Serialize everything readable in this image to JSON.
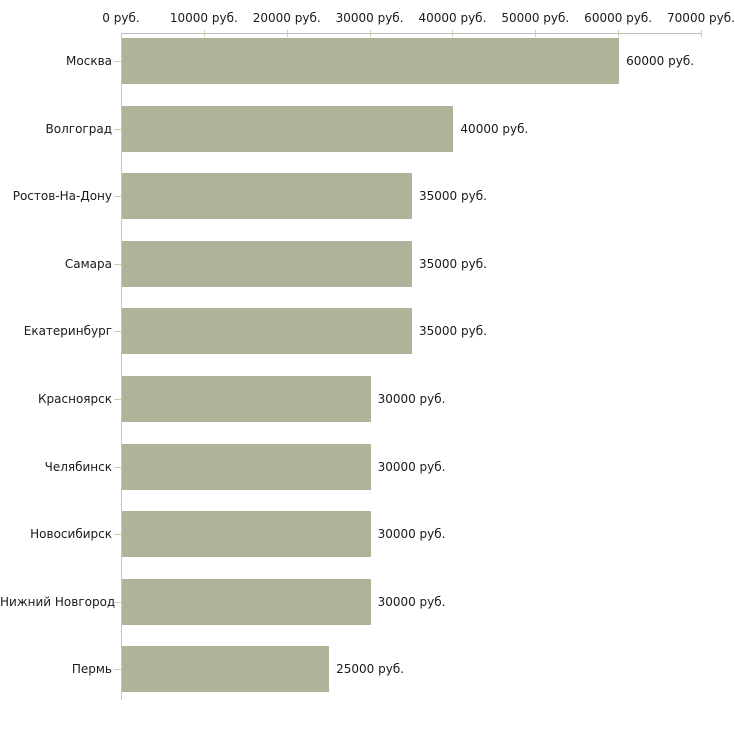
{
  "chart_data": {
    "type": "bar",
    "orientation": "horizontal",
    "title": "",
    "xlabel": "",
    "ylabel": "",
    "grid": false,
    "legend": false,
    "categories": [
      "Москва",
      "Волгоград",
      "Ростов-На-Дону",
      "Самара",
      "Екатеринбург",
      "Красноярск",
      "Челябинск",
      "Новосибирск",
      "Нижний Новгород",
      "Пермь"
    ],
    "values": [
      60000,
      40000,
      35000,
      35000,
      35000,
      30000,
      30000,
      30000,
      30000,
      25000
    ],
    "value_labels": [
      "60000 руб.",
      "40000 руб.",
      "35000 руб.",
      "35000 руб.",
      "35000 руб.",
      "30000 руб.",
      "30000 руб.",
      "30000 руб.",
      "30000 руб.",
      "25000 руб."
    ],
    "x_axis": {
      "position": "top",
      "min": 0,
      "max": 70000,
      "ticks": [
        0,
        10000,
        20000,
        30000,
        40000,
        50000,
        60000,
        70000
      ],
      "tick_labels": [
        "0 руб.",
        "10000 руб.",
        "20000 руб.",
        "30000 руб.",
        "40000 руб.",
        "50000 руб.",
        "60000 руб.",
        "70000 руб."
      ]
    },
    "colors": {
      "bar": "#adb49a",
      "axis_line": "#bdbdbd",
      "tick_mark": "#cdd0ac",
      "text": "#1a1a1a",
      "background": "#ffffff"
    }
  }
}
